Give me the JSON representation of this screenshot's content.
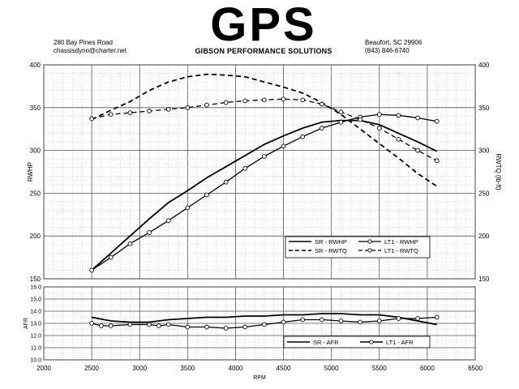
{
  "header": {
    "logo": "GPS",
    "logo_subtitle": "GIBSON PERFORMANCE SOLUTIONS",
    "address_line1": "280 Bay Pines Road",
    "address_line2": "chassisdyno@charter.net",
    "city_line": "Beaufort, SC 29906",
    "phone_line": "(843) 846-6740"
  },
  "chart_data": [
    {
      "type": "line",
      "xlabel": "",
      "ylabel": "RWHP",
      "y2label": "RWTQ (lb-ft)",
      "xlim": [
        2000,
        6500
      ],
      "ylim": [
        150,
        400
      ],
      "y2lim": [
        150,
        400
      ],
      "grid": true,
      "legend_position": "bottom-right",
      "series": [
        {
          "name": "SR - RWHP",
          "style": "solid",
          "marker": false,
          "x": [
            2500,
            2700,
            2900,
            3100,
            3300,
            3500,
            3700,
            3900,
            4100,
            4300,
            4500,
            4700,
            4900,
            5100,
            5300,
            5500,
            5700,
            5900,
            6100
          ],
          "y": [
            160,
            180,
            200,
            220,
            239,
            253,
            268,
            281,
            294,
            307,
            317,
            326,
            333,
            335,
            335,
            330,
            320,
            310,
            299
          ]
        },
        {
          "name": "LT1 - RWHP",
          "style": "solid",
          "marker": true,
          "x": [
            2500,
            2700,
            2900,
            3100,
            3300,
            3500,
            3700,
            3900,
            4100,
            4300,
            4500,
            4700,
            4900,
            5100,
            5300,
            5500,
            5700,
            5900,
            6100
          ],
          "y": [
            160,
            175,
            191,
            204,
            218,
            233,
            248,
            263,
            279,
            293,
            305,
            316,
            326,
            333,
            339,
            342,
            341,
            338,
            334
          ]
        },
        {
          "name": "SR - RWTQ",
          "style": "dashed",
          "marker": false,
          "x": [
            2500,
            2700,
            2900,
            3100,
            3300,
            3500,
            3700,
            3900,
            4100,
            4300,
            4500,
            4700,
            4900,
            5100,
            5300,
            5500,
            5700,
            5900,
            6100
          ],
          "y": [
            336,
            347,
            357,
            370,
            380,
            386,
            389,
            388,
            386,
            380,
            374,
            367,
            356,
            342,
            325,
            308,
            291,
            273,
            258
          ]
        },
        {
          "name": "LT1 - RWTQ",
          "style": "dashed",
          "marker": true,
          "x": [
            2500,
            2700,
            2900,
            3100,
            3300,
            3500,
            3700,
            3900,
            4100,
            4300,
            4500,
            4700,
            4900,
            5100,
            5300,
            5500,
            5700,
            5900,
            6100
          ],
          "y": [
            337,
            342,
            344,
            346,
            348,
            350,
            353,
            356,
            358,
            359,
            360,
            359,
            354,
            345,
            336,
            326,
            313,
            300,
            288
          ]
        }
      ]
    },
    {
      "type": "line",
      "xlabel": "RPM",
      "ylabel": "AFR",
      "xlim": [
        2000,
        6500
      ],
      "ylim": [
        10.0,
        16.0
      ],
      "x_ticks": [
        2000,
        2500,
        3000,
        3500,
        4000,
        4500,
        5000,
        5500,
        6000,
        6500
      ],
      "y_ticks": [
        "10.0",
        "11.0",
        "12.0",
        "13.0",
        "14.0",
        "15.0",
        "16.0"
      ],
      "grid": true,
      "legend_position": "bottom-right",
      "series": [
        {
          "name": "SR - AFR",
          "style": "solid",
          "marker": false,
          "x": [
            2500,
            2700,
            2900,
            3100,
            3300,
            3500,
            3700,
            3900,
            4100,
            4300,
            4500,
            4700,
            4900,
            5100,
            5300,
            5500,
            5700,
            5900,
            6100
          ],
          "y": [
            13.5,
            13.2,
            13.1,
            13.1,
            13.3,
            13.4,
            13.5,
            13.5,
            13.6,
            13.6,
            13.7,
            13.7,
            13.8,
            13.8,
            13.7,
            13.7,
            13.5,
            13.2,
            12.9
          ]
        },
        {
          "name": "LT1 - AFR",
          "style": "solid",
          "marker": true,
          "x": [
            2500,
            2600,
            2700,
            2900,
            3100,
            3200,
            3300,
            3500,
            3700,
            3900,
            4100,
            4300,
            4500,
            4700,
            4900,
            5100,
            5300,
            5500,
            5700,
            5900,
            6100
          ],
          "y": [
            13.0,
            12.8,
            12.8,
            12.9,
            12.9,
            12.8,
            12.9,
            12.7,
            12.7,
            12.6,
            12.7,
            12.9,
            13.1,
            13.3,
            13.3,
            13.2,
            13.1,
            13.2,
            13.4,
            13.4,
            13.5
          ]
        }
      ]
    }
  ],
  "top_axis": {
    "y_ticks": [
      "150",
      "200",
      "250",
      "300",
      "350",
      "400"
    ]
  }
}
